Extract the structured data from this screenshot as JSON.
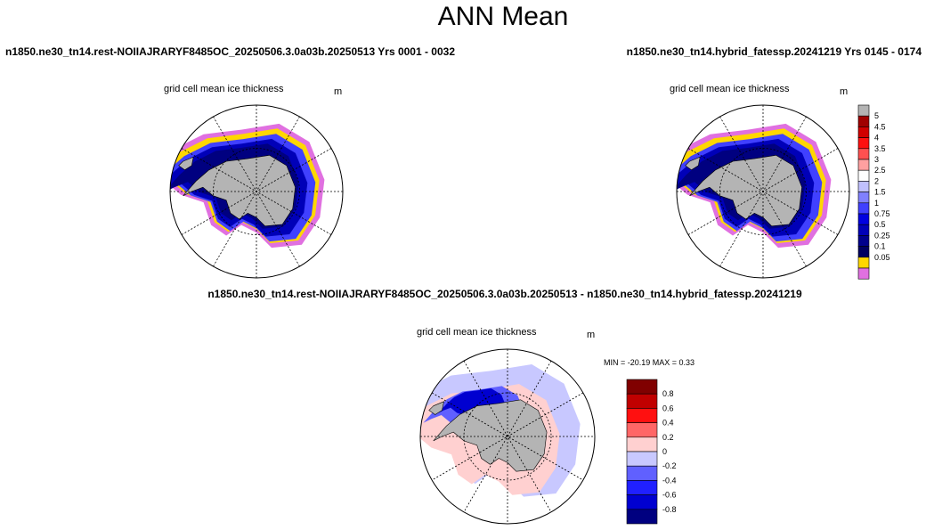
{
  "title": "ANN Mean",
  "left_header": "n1850.ne30_tn14.rest-NOIIAJRARYF8485OC_20250506.3.0a03b.20250513  Yrs 0001 - 0032",
  "right_header": "n1850.ne30_tn14.hybrid_fatessp.20241219  Yrs 0145 - 0174",
  "diff_header": "n1850.ne30_tn14.rest-NOIIAJRARYF8485OC_20250506.3.0a03b.20250513 - n1850.ne30_tn14.hybrid_fatessp.20241219",
  "panels": [
    {
      "label": "grid cell mean ice thickness",
      "units": "m"
    },
    {
      "label": "grid cell mean ice thickness",
      "units": "m"
    },
    {
      "label": "grid cell mean ice thickness",
      "units": "m"
    }
  ],
  "diff_stats": "MIN = -20.19 MAX =   0.33",
  "colorbar": {
    "colors": [
      "#b4b4b4",
      "#a00000",
      "#d00000",
      "#ff1010",
      "#ff5050",
      "#ffa0a0",
      "#ffffff",
      "#c0c0ff",
      "#8080ff",
      "#4040ff",
      "#0000e0",
      "#0000b8",
      "#00008c",
      "#000060",
      "#ffd700",
      "#e070e0"
    ],
    "labels": [
      "5",
      "4.5",
      "4",
      "3.5",
      "3",
      "2.5",
      "2",
      "1.5",
      "1",
      "0.75",
      "0.5",
      "0.25",
      "0.1",
      "0.05"
    ]
  },
  "diff_colorbar": {
    "colors": [
      "#800000",
      "#c00000",
      "#ff1010",
      "#ff6666",
      "#ffd0d0",
      "#c8c8ff",
      "#6060ff",
      "#2020ff",
      "#0000d0",
      "#000080"
    ],
    "labels": [
      "0.8",
      "0.6",
      "0.4",
      "0.2",
      "0",
      "-0.2",
      "-0.4",
      "-0.6",
      "-0.8"
    ]
  }
}
